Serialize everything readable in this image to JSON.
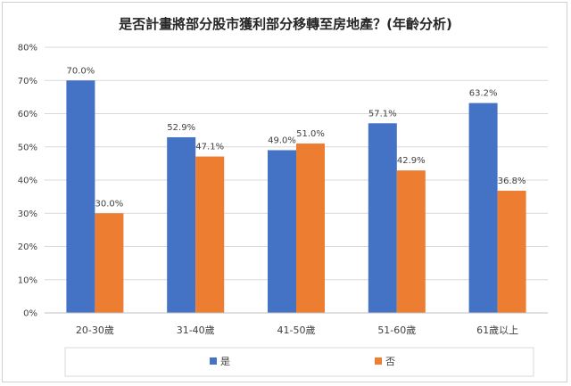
{
  "chart_data": {
    "type": "bar",
    "title": "是否計畫將部分股市獲利部分移轉至房地產？(年齡分析)",
    "categories": [
      "20-30歲",
      "31-40歲",
      "41-50歲",
      "51-60歲",
      "61歲以上"
    ],
    "series": [
      {
        "name": "是",
        "color": "#4472C4",
        "values": [
          70.0,
          52.9,
          49.0,
          57.1,
          63.2
        ],
        "labels": [
          "70.0%",
          "52.9%",
          "49.0%",
          "57.1%",
          "63.2%"
        ]
      },
      {
        "name": "否",
        "color": "#ED7D31",
        "values": [
          30.0,
          47.1,
          51.0,
          42.9,
          36.8
        ],
        "labels": [
          "30.0%",
          "47.1%",
          "51.0%",
          "42.9%",
          "36.8%"
        ]
      }
    ],
    "ylim": [
      0,
      80
    ],
    "yticks": [
      "0%",
      "10%",
      "20%",
      "30%",
      "40%",
      "50%",
      "60%",
      "70%",
      "80%"
    ],
    "grid": true,
    "legend_position": "bottom"
  }
}
